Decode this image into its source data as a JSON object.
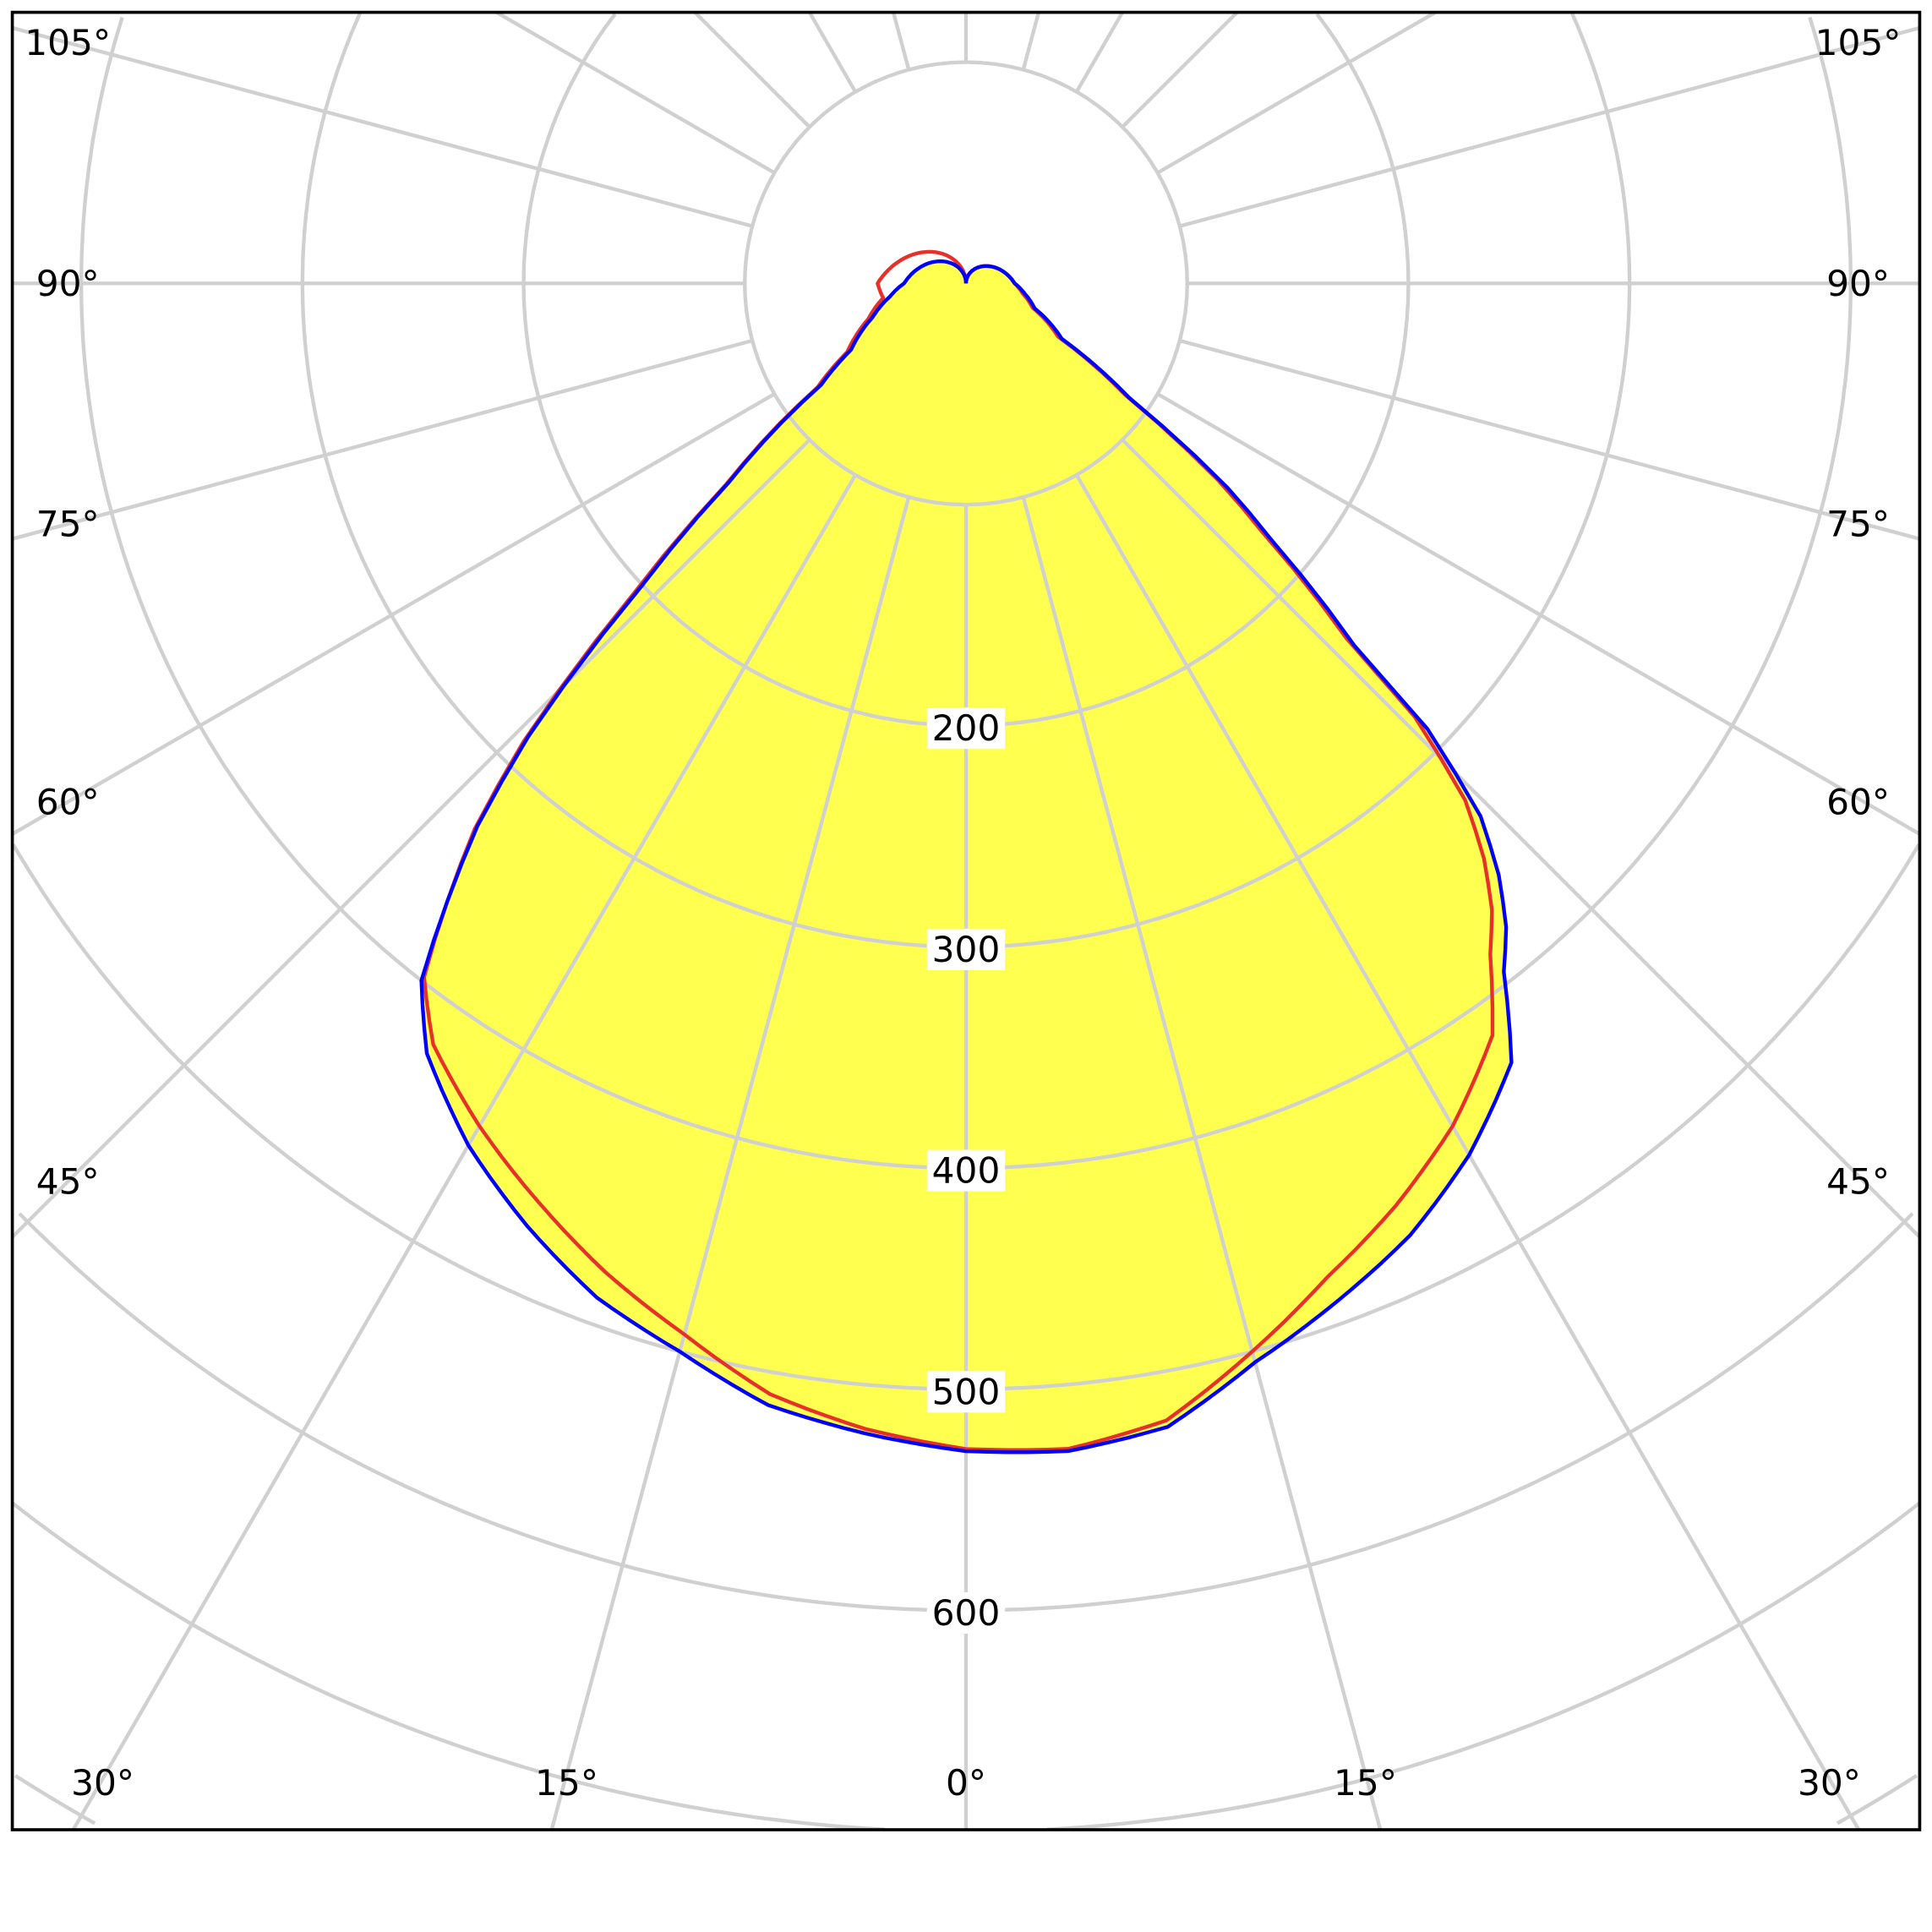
{
  "chart_data": {
    "type": "polar",
    "title": "",
    "radial_axis": {
      "ticks": [
        200,
        300,
        400,
        500,
        600
      ],
      "tick_labels": [
        "200",
        "300",
        "400",
        "500",
        "600"
      ],
      "rings": [
        100,
        200,
        300,
        400,
        500,
        600,
        700,
        800,
        900
      ],
      "range": [
        0,
        900
      ]
    },
    "angular_axis": {
      "zero_direction": "down",
      "step_deg": 15,
      "side_labels": [
        {
          "angle": 105,
          "text": "105°"
        },
        {
          "angle": 90,
          "text": "90°"
        },
        {
          "angle": 75,
          "text": "75°"
        },
        {
          "angle": 60,
          "text": "60°"
        },
        {
          "angle": 45,
          "text": "45°"
        }
      ],
      "bottom_labels": [
        {
          "angle": -30,
          "text": "30°"
        },
        {
          "angle": -15,
          "text": "15°"
        },
        {
          "angle": 0,
          "text": "0°"
        },
        {
          "angle": 15,
          "text": "15°"
        },
        {
          "angle": 30,
          "text": "30°"
        }
      ]
    },
    "grid": true,
    "fill_color": "#ffff50",
    "angles": [
      -180,
      -90,
      -80,
      -70,
      -60,
      -55,
      -50,
      -47,
      -44,
      -42,
      -38,
      -35,
      -30,
      -25,
      -20,
      -15,
      -10,
      -5,
      0,
      5,
      10,
      15,
      20,
      25,
      30,
      35,
      38,
      40,
      42,
      44,
      46,
      47,
      50,
      52,
      55,
      60,
      70,
      80,
      90,
      180
    ],
    "series": [
      {
        "name": "blue",
        "color": "#0000ff",
        "values": [
          0,
          28,
          35,
          45,
          60,
          80,
          140,
          200,
          285,
          330,
          400,
          425,
          450,
          470,
          488,
          500,
          515,
          522,
          528,
          530,
          525,
          505,
          490,
          475,
          455,
          430,
          395,
          380,
          360,
          335,
          290,
          240,
          180,
          150,
          90,
          50,
          33,
          27,
          22,
          0
        ]
      },
      {
        "name": "red",
        "color": "#e8302a",
        "values": [
          0,
          40,
          38,
          47,
          62,
          82,
          142,
          205,
          288,
          332,
          398,
          420,
          440,
          458,
          476,
          492,
          510,
          520,
          527,
          529,
          522,
          500,
          478,
          460,
          440,
          415,
          385,
          370,
          350,
          325,
          282,
          235,
          175,
          145,
          88,
          48,
          32,
          26,
          22,
          0
        ]
      }
    ]
  }
}
